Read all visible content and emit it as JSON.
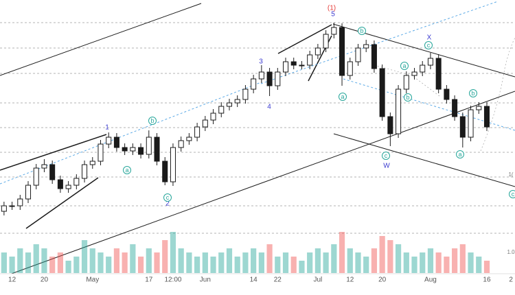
{
  "chart_data": {
    "type": "candlestick",
    "ylim": [
      0,
      100
    ],
    "candle_color": "#1a1a1a",
    "volume_up_color": "#26a69a",
    "volume_down_color": "#ef5350",
    "categories": [
      null,
      "12",
      null,
      null,
      null,
      "20",
      null,
      null,
      null,
      null,
      null,
      "May",
      null,
      null,
      null,
      null,
      null,
      null,
      "17",
      null,
      null,
      "12:00",
      null,
      null,
      null,
      "Jun",
      null,
      null,
      null,
      null,
      null,
      "14",
      null,
      null,
      "22",
      null,
      null,
      null,
      null,
      "Jul",
      null,
      null,
      null,
      "12",
      null,
      null,
      null,
      "20",
      null,
      null,
      null,
      null,
      null,
      "Aug",
      null,
      null,
      null,
      null,
      null,
      null,
      "16",
      null,
      null,
      "2"
    ],
    "open": [
      23,
      25,
      25,
      27.5,
      32.5,
      38.75,
      40,
      34.5,
      31.25,
      32.5,
      35,
      40,
      41.25,
      47.5,
      50,
      46.25,
      45,
      46.25,
      43.75,
      50,
      41.25,
      33.75,
      46.25,
      48.75,
      50,
      53.75,
      56.25,
      58.75,
      61.25,
      62.5,
      63.75,
      67.5,
      71.25,
      73.75,
      68.75,
      73.75,
      77.5,
      76.25,
      76.25,
      80,
      82.5,
      87.5,
      90,
      72.5,
      77.5,
      82.5,
      83.75,
      75,
      57.5,
      51.25,
      67.5,
      72.5,
      73.75,
      76.25,
      78.75,
      67.5,
      63.75,
      57.5,
      50,
      60,
      61.25,
      null,
      null,
      null
    ],
    "high": [
      26.5,
      26.5,
      29,
      34,
      40.25,
      42,
      41.5,
      36,
      34,
      36.5,
      41.5,
      42.75,
      49,
      51.75,
      51.5,
      47.75,
      47.75,
      47.75,
      52.5,
      51.5,
      42.75,
      47.75,
      50.25,
      51.5,
      55.25,
      57.75,
      60.25,
      62.75,
      64,
      65.25,
      69,
      72.75,
      76.25,
      75.25,
      75.25,
      79,
      79,
      77.75,
      81.5,
      84,
      89,
      91.75,
      91.5,
      79,
      84,
      85.5,
      85.25,
      76.5,
      59,
      69,
      74,
      75.25,
      77.75,
      80.75,
      80.25,
      69,
      65.25,
      59,
      61.5,
      62.75,
      62.75,
      null,
      null,
      null
    ],
    "low": [
      21.5,
      23.5,
      23.5,
      26,
      31,
      37.25,
      33,
      29.75,
      29.75,
      31,
      33.5,
      38.5,
      39.75,
      46,
      44.75,
      43.5,
      43.5,
      42.25,
      42.25,
      39.75,
      32.5,
      32.25,
      44.75,
      47.25,
      48.5,
      52.25,
      54.75,
      57.25,
      59.75,
      61,
      62.25,
      66,
      69.75,
      65,
      67.25,
      72.25,
      74.75,
      74.75,
      74.75,
      78.5,
      81,
      86,
      68.75,
      71,
      76,
      81,
      73.5,
      56,
      46.75,
      49.75,
      66,
      71,
      72.25,
      74.75,
      66,
      62.25,
      56,
      46.25,
      48.5,
      58.5,
      52.25,
      null,
      null,
      null
    ],
    "close": [
      25,
      25,
      27.5,
      32.5,
      38.75,
      40,
      34.5,
      31.25,
      32.5,
      35,
      40,
      41.25,
      47.5,
      50,
      46.25,
      45,
      46.25,
      43.75,
      50,
      41.25,
      33.75,
      46.25,
      48.75,
      50,
      53.75,
      56.25,
      58.75,
      61.25,
      62.5,
      63.75,
      67.5,
      71.25,
      73.75,
      68.75,
      73.75,
      77.5,
      76.25,
      76.25,
      80,
      82.5,
      87.5,
      90,
      72.5,
      77.5,
      82.5,
      83.75,
      75,
      57.5,
      51.25,
      67.5,
      72.5,
      73.75,
      76.25,
      78.75,
      67.5,
      63.75,
      57.5,
      50,
      60,
      61.25,
      53.75,
      null,
      null,
      null
    ],
    "volume": [
      5,
      4,
      6,
      5,
      7,
      6,
      4,
      5,
      3,
      4,
      8,
      6,
      5,
      4,
      6,
      5,
      7,
      4,
      6,
      5,
      8,
      10,
      6,
      5,
      4,
      5,
      4,
      5,
      6,
      4,
      5,
      6,
      5,
      7,
      4,
      5,
      4,
      3,
      5,
      6,
      5,
      7,
      10,
      6,
      5,
      4,
      6,
      9,
      8,
      7,
      5,
      4,
      5,
      6,
      5,
      4,
      6,
      7,
      5,
      4,
      3,
      null,
      null,
      null
    ],
    "annotations": [
      "(1)",
      "5",
      "1",
      "2",
      "3",
      "4",
      "W",
      "X",
      "b",
      "a",
      "c",
      "a",
      "b",
      "c",
      "a",
      "b",
      "c",
      "b",
      "a",
      "c",
      "1(",
      "1.0"
    ]
  }
}
